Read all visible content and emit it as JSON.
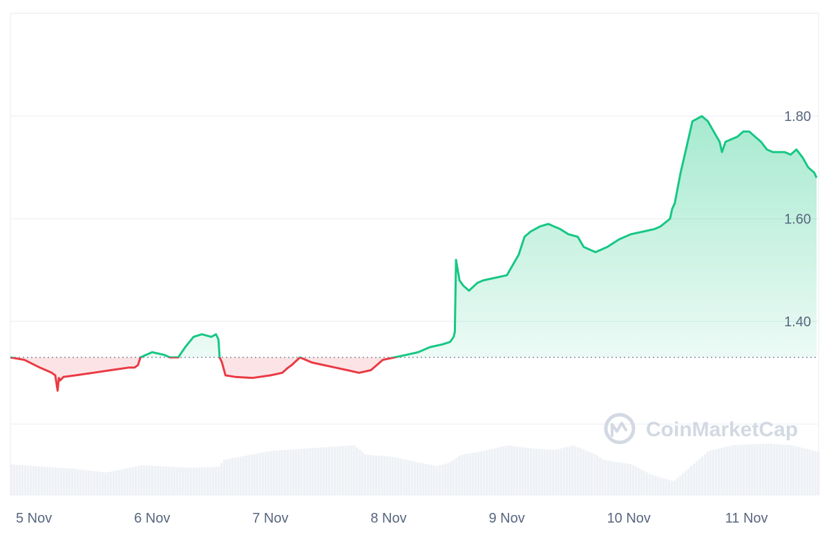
{
  "chart_data": {
    "type": "line",
    "ylim": [
      1.2,
      2.0
    ],
    "y_ticks": [
      1.4,
      1.6,
      1.8
    ],
    "y_tick_labels": [
      "1.40",
      "1.60",
      "1.80"
    ],
    "x_tick_labels": [
      "5 Nov",
      "6 Nov",
      "7 Nov",
      "8 Nov",
      "9 Nov",
      "10 Nov",
      "11 Nov"
    ],
    "baseline": 1.33,
    "grid": true,
    "colors": {
      "up": "#16c784",
      "down": "#ea3943",
      "grid": "#eff2f5",
      "baseline": "#858ca2",
      "volume": "#eff2f5"
    },
    "series": [
      {
        "x": [
          0,
          0.12,
          0.25,
          0.35,
          0.38,
          0.4,
          0.41,
          0.42,
          0.45,
          0.55,
          0.7,
          0.85,
          1.0,
          1.05,
          1.08,
          1.1,
          1.2,
          1.3,
          1.35,
          1.42,
          1.48,
          1.55,
          1.62,
          1.7,
          1.74,
          1.76,
          1.77,
          1.79,
          1.82,
          1.9,
          2.05,
          2.2,
          2.3,
          2.35,
          2.38,
          2.45,
          2.55,
          2.65,
          2.75,
          2.85,
          2.95,
          3.05,
          3.15,
          3.25,
          3.35,
          3.45,
          3.55,
          3.65,
          3.72,
          3.75,
          3.76,
          3.77,
          3.8,
          3.83,
          3.88,
          3.95,
          4.0,
          4.1,
          4.2,
          4.3,
          4.35,
          4.4,
          4.48,
          4.55,
          4.6,
          4.65,
          4.72,
          4.8,
          4.85,
          4.95,
          5.05,
          5.15,
          5.25,
          5.35,
          5.45,
          5.5,
          5.58,
          5.6,
          5.62,
          5.67,
          5.7,
          5.77,
          5.85,
          5.9,
          5.95,
          6.0,
          6.02,
          6.05,
          6.1,
          6.15,
          6.2,
          6.25,
          6.3,
          6.35,
          6.4,
          6.45,
          6.5,
          6.55,
          6.6,
          6.65,
          6.7,
          6.75,
          6.8,
          6.82
        ],
        "values": [
          1.33,
          1.325,
          1.31,
          1.3,
          1.295,
          1.265,
          1.29,
          1.285,
          1.292,
          1.295,
          1.3,
          1.305,
          1.31,
          1.31,
          1.315,
          1.33,
          1.34,
          1.335,
          1.33,
          1.33,
          1.35,
          1.37,
          1.375,
          1.37,
          1.375,
          1.365,
          1.33,
          1.32,
          1.295,
          1.292,
          1.29,
          1.295,
          1.3,
          1.31,
          1.315,
          1.33,
          1.32,
          1.315,
          1.31,
          1.305,
          1.3,
          1.305,
          1.325,
          1.33,
          1.335,
          1.34,
          1.35,
          1.355,
          1.36,
          1.37,
          1.38,
          1.52,
          1.48,
          1.47,
          1.46,
          1.475,
          1.48,
          1.485,
          1.49,
          1.53,
          1.565,
          1.575,
          1.585,
          1.59,
          1.585,
          1.58,
          1.57,
          1.565,
          1.545,
          1.535,
          1.545,
          1.56,
          1.57,
          1.575,
          1.58,
          1.585,
          1.6,
          1.62,
          1.63,
          1.69,
          1.72,
          1.79,
          1.8,
          1.79,
          1.77,
          1.75,
          1.73,
          1.75,
          1.755,
          1.76,
          1.77,
          1.77,
          1.76,
          1.75,
          1.735,
          1.73,
          1.73,
          1.73,
          1.725,
          1.735,
          1.72,
          1.7,
          1.69,
          1.68
        ]
      }
    ],
    "volume": {
      "x": [
        0,
        0.5,
        0.8,
        1.1,
        1.5,
        1.75,
        1.8,
        2.2,
        2.5,
        2.9,
        3.0,
        3.2,
        3.6,
        3.7,
        3.8,
        4.0,
        4.2,
        4.4,
        4.6,
        4.75,
        4.95,
        5.0,
        5.25,
        5.4,
        5.6,
        5.9,
        6.1,
        6.4,
        6.6,
        6.82
      ],
      "values": [
        0.38,
        0.33,
        0.28,
        0.37,
        0.34,
        0.35,
        0.44,
        0.55,
        0.58,
        0.62,
        0.5,
        0.48,
        0.36,
        0.4,
        0.5,
        0.55,
        0.62,
        0.58,
        0.56,
        0.62,
        0.5,
        0.44,
        0.38,
        0.26,
        0.17,
        0.55,
        0.62,
        0.64,
        0.62,
        0.54
      ]
    }
  },
  "watermark": {
    "brand": "CoinMarketCap",
    "icon": "coinmarketcap-logo-icon"
  }
}
